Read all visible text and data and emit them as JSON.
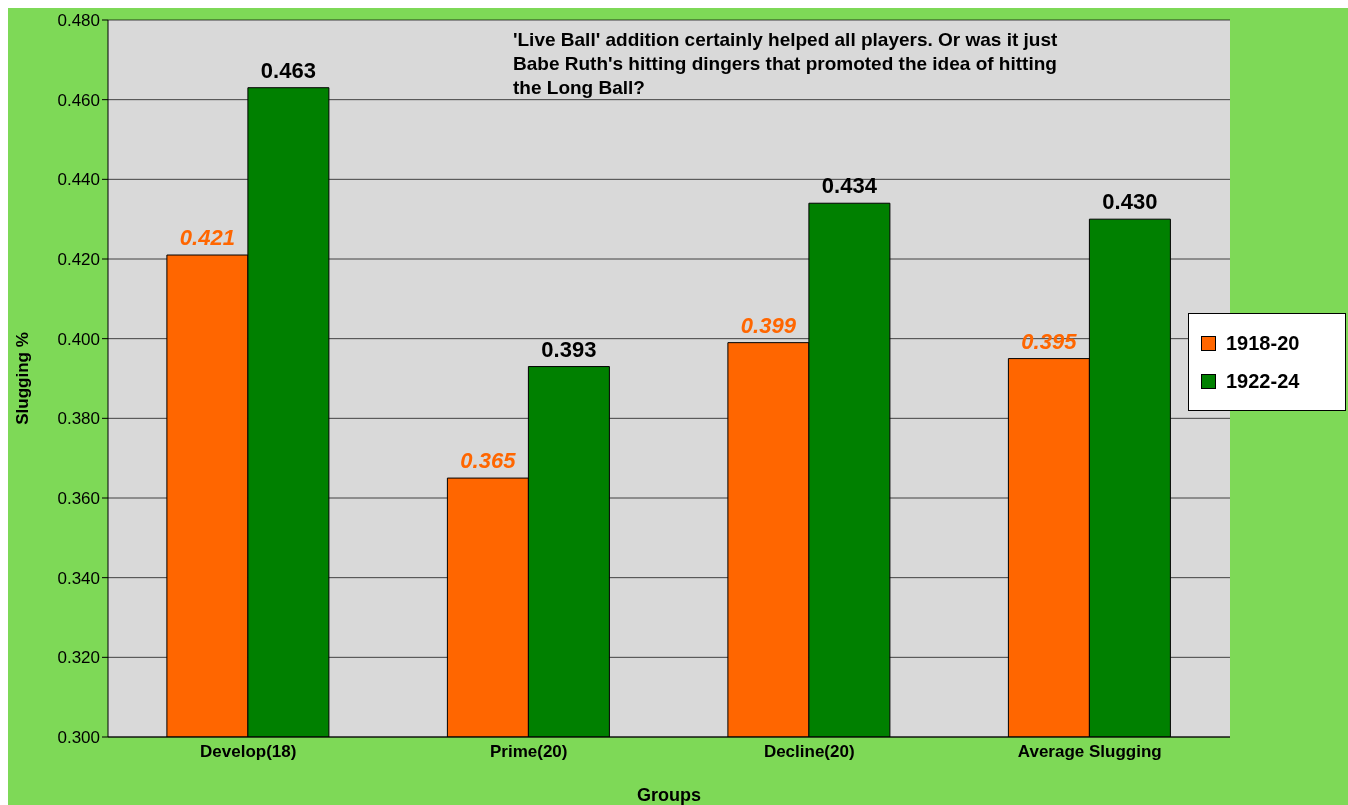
{
  "chart_data": {
    "type": "bar",
    "xlabel": "Groups",
    "ylabel": "Slugging %",
    "annotations": [
      "'Live Ball' addition certainly helped all players. Or was it just Babe Ruth's hitting dingers that promoted the idea of hitting the Long Ball?"
    ],
    "categories": [
      "Develop(18)",
      "Prime(20)",
      "Decline(20)",
      "Average Slugging"
    ],
    "series": [
      {
        "name": "1918-20",
        "color": "#ff6600",
        "values": [
          0.421,
          0.365,
          0.399,
          0.395
        ],
        "value_labels": [
          "0.421",
          "0.365",
          "0.399",
          "0.395"
        ]
      },
      {
        "name": "1922-24",
        "color": "#008000",
        "values": [
          0.463,
          0.393,
          0.434,
          0.43
        ],
        "value_labels": [
          "0.463",
          "0.393",
          "0.434",
          "0.430"
        ]
      }
    ],
    "ylim": [
      0.3,
      0.48
    ],
    "yticks": [
      {
        "value": 0.3,
        "label": "0.300"
      },
      {
        "value": 0.32,
        "label": "0.320"
      },
      {
        "value": 0.34,
        "label": "0.340"
      },
      {
        "value": 0.36,
        "label": "0.360"
      },
      {
        "value": 0.38,
        "label": "0.380"
      },
      {
        "value": 0.4,
        "label": "0.400"
      },
      {
        "value": 0.42,
        "label": "0.420"
      },
      {
        "value": 0.44,
        "label": "0.440"
      },
      {
        "value": 0.46,
        "label": "0.460"
      },
      {
        "value": 0.48,
        "label": "0.480"
      }
    ],
    "grid": "y",
    "legend": "right"
  }
}
